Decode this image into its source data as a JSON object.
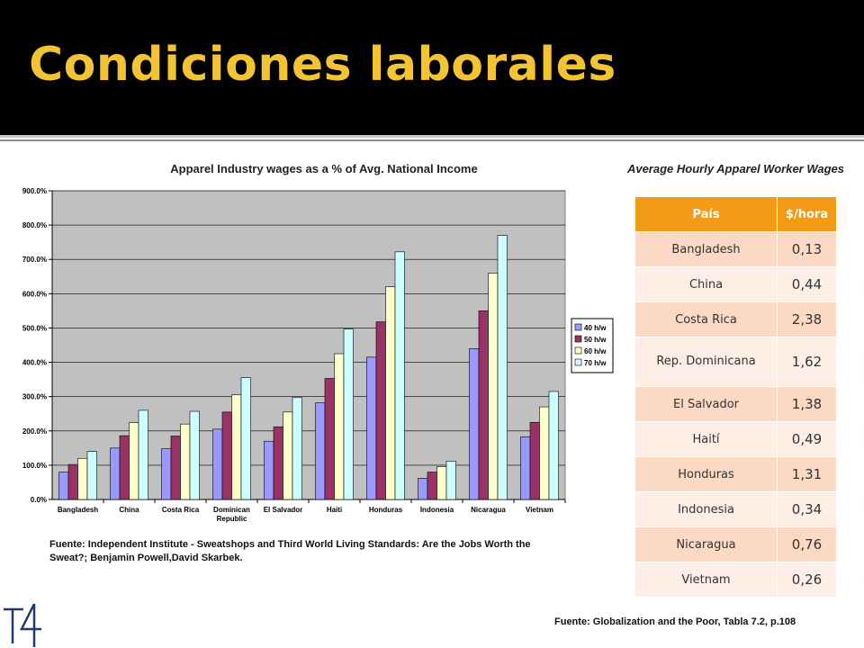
{
  "slide_title": "Condiciones laborales",
  "chart_data": {
    "type": "bar",
    "title": "Apparel Industry wages as a % of Avg. National Income",
    "categories": [
      "Bangladesh",
      "China",
      "Costa Rica",
      "Dominican Republic",
      "El Salvador",
      "Haiti",
      "Honduras",
      "Indonesia",
      "Nicaragua",
      "Vietnam"
    ],
    "series": [
      {
        "name": "40 h/w",
        "values": [
          80,
          150,
          148,
          205,
          170,
          282,
          415,
          62,
          440,
          183
        ]
      },
      {
        "name": "50 h/w",
        "values": [
          102,
          186,
          185,
          255,
          212,
          353,
          518,
          80,
          550,
          225
        ]
      },
      {
        "name": "60 h/w",
        "values": [
          120,
          224,
          220,
          305,
          255,
          425,
          620,
          96,
          660,
          270
        ]
      },
      {
        "name": "70 h/w",
        "values": [
          140,
          260,
          257,
          355,
          297,
          497,
          722,
          112,
          770,
          315
        ]
      }
    ],
    "colors": [
      "#9999ff",
      "#993366",
      "#ffffcc",
      "#ccffff"
    ],
    "ylim": [
      0,
      900
    ],
    "yticks": [
      "0.0%",
      "100.0%",
      "200.0%",
      "300.0%",
      "400.0%",
      "500.0%",
      "600.0%",
      "700.0%",
      "800.0%",
      "900.0%"
    ],
    "xlabel": "",
    "ylabel": "",
    "grid": true,
    "plot_background": "#c0c0c0",
    "legend_position": "right"
  },
  "source_left": "Fuente: Independent Institute - Sweatshops and Third World Living Standards: Are the Jobs Worth the Sweat?; Benjamin Powell,David Skarbek.",
  "table": {
    "title": "Average Hourly Apparel Worker Wages",
    "headers": [
      "País",
      "$/hora"
    ],
    "rows": [
      [
        "Bangladesh",
        "0,13"
      ],
      [
        "China",
        "0,44"
      ],
      [
        "Costa Rica",
        "2,38"
      ],
      [
        "Rep. Dominicana",
        "1,62"
      ],
      [
        "El Salvador",
        "1,38"
      ],
      [
        "Haití",
        "0,49"
      ],
      [
        "Honduras",
        "1,31"
      ],
      [
        "Indonesia",
        "0,34"
      ],
      [
        "Nicaragua",
        "0,76"
      ],
      [
        "Vietnam",
        "0,26"
      ]
    ]
  },
  "source_right": "Fuente: Globalization and the Poor, Tabla 7.2, p.108",
  "logo_text": "T4"
}
